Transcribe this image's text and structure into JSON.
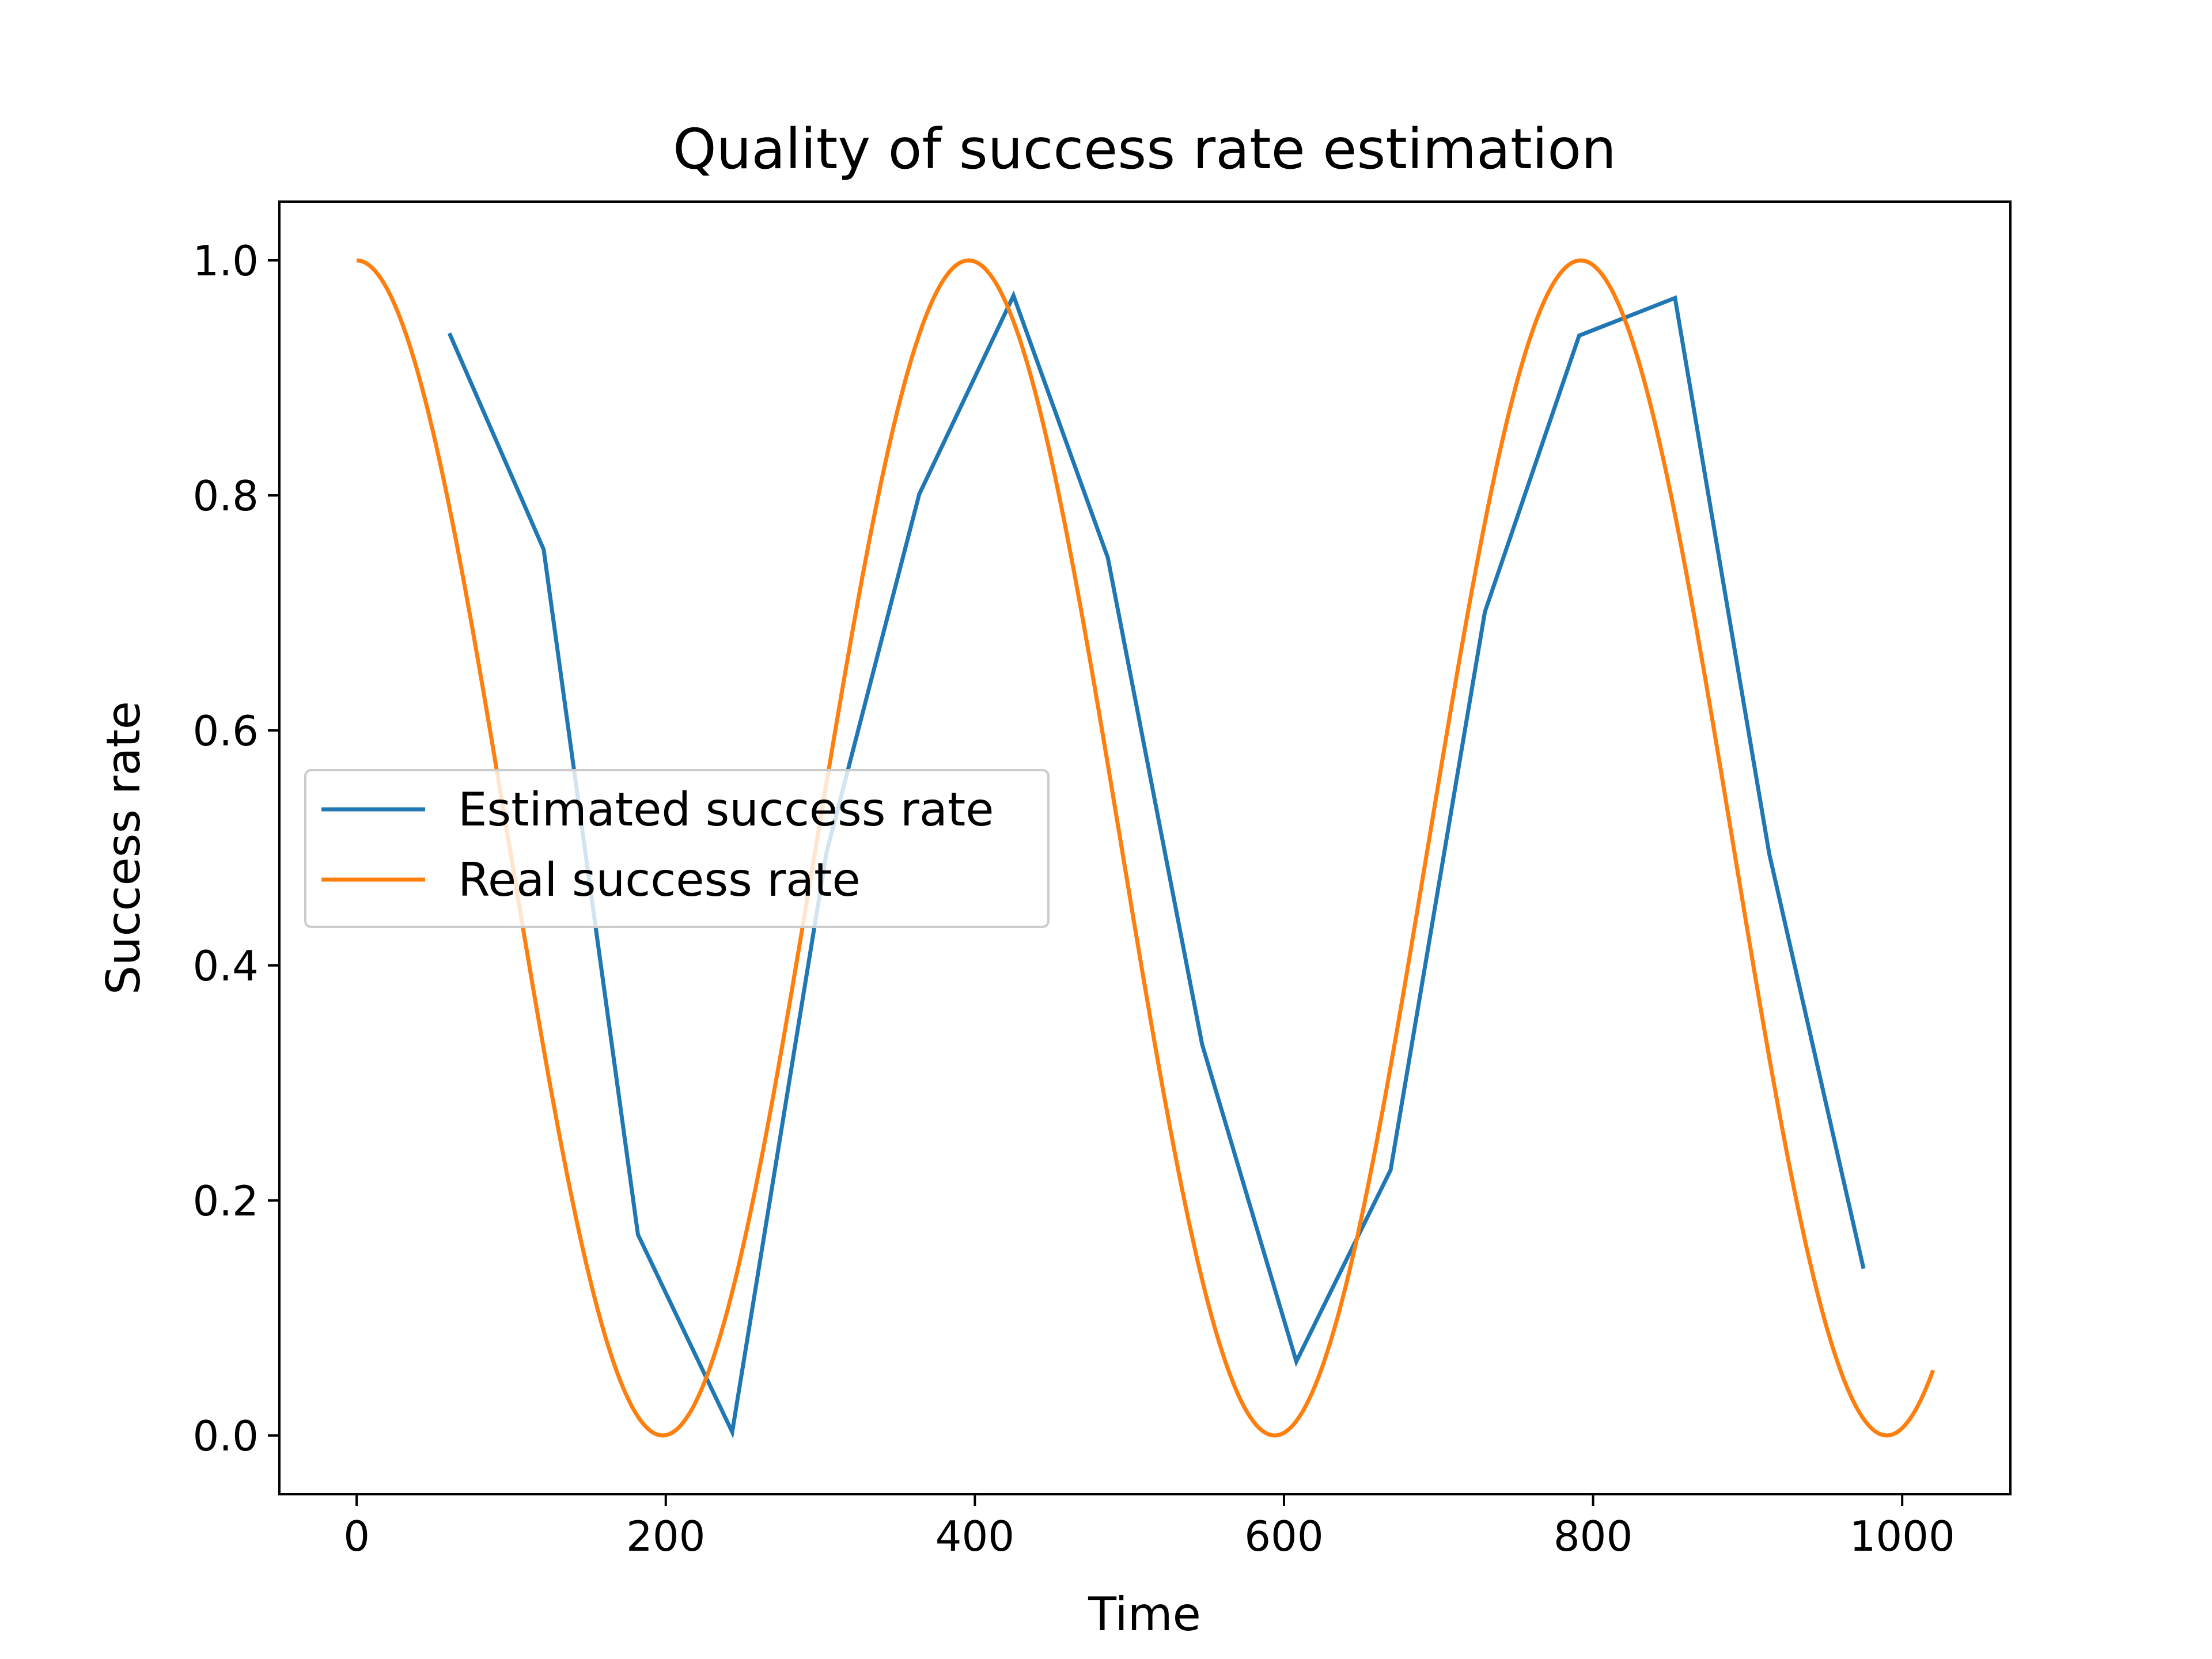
{
  "chart_data": {
    "type": "line",
    "title": "Quality of success rate estimation",
    "xlabel": "Time",
    "ylabel": "Success rate",
    "xlim": [
      -50,
      1070
    ],
    "ylim": [
      -0.05,
      1.05
    ],
    "xticks": [
      0,
      200,
      400,
      600,
      800,
      1000
    ],
    "xtick_labels": [
      "0",
      "200",
      "400",
      "600",
      "800",
      "1000"
    ],
    "yticks": [
      0.0,
      0.2,
      0.4,
      0.6,
      0.8,
      1.0
    ],
    "ytick_labels": [
      "0.0",
      "0.2",
      "0.4",
      "0.6",
      "0.8",
      "1.0"
    ],
    "grid": false,
    "legend_position": "center-left",
    "series": [
      {
        "name": "Estimated success rate",
        "color": "#1f77b4",
        "x": [
          60,
          121,
          182,
          243,
          304,
          364,
          425,
          486,
          547,
          608,
          669,
          730,
          791,
          853,
          914,
          975
        ],
        "y": [
          0.938,
          0.754,
          0.171,
          0.003,
          0.496,
          0.801,
          0.97,
          0.747,
          0.333,
          0.063,
          0.226,
          0.701,
          0.936,
          0.968,
          0.495,
          0.142
        ]
      },
      {
        "name": "Real success rate",
        "color": "#ff7f0e",
        "function": "0.5 + 0.5 * cos(2 * pi * x / 396)",
        "x_range": [
          0,
          1020
        ]
      }
    ]
  }
}
